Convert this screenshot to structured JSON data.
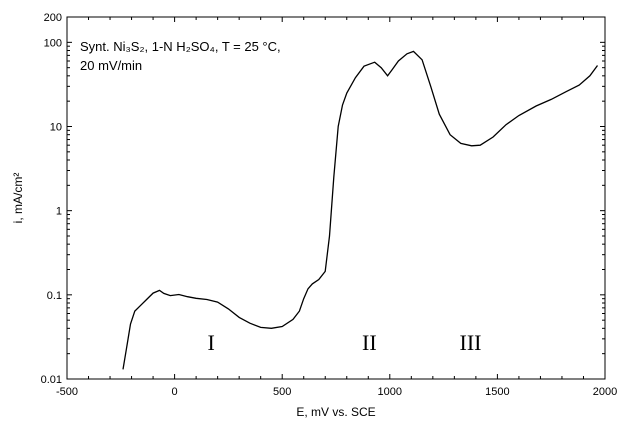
{
  "chart_data": {
    "type": "line",
    "xlabel": "E, mV vs. SCE",
    "ylabel": "i, mA/cm²",
    "xlim": [
      -500,
      2000
    ],
    "ylim": [
      0.01,
      200
    ],
    "yscale": "log",
    "grid": false,
    "x_ticks": [
      -500,
      0,
      500,
      1000,
      1500,
      2000
    ],
    "x_tick_labels": [
      "-500",
      "0",
      "500",
      "1000",
      "1500",
      "2000"
    ],
    "y_ticks": [
      0.01,
      0.1,
      1,
      10,
      100,
      200
    ],
    "y_tick_labels": [
      "0.01",
      "0.1",
      "1",
      "10",
      "100",
      "200"
    ],
    "annotation_line1": "Synt. Ni₃S₂, 1-N H₂SO₄, T = 25 °C,",
    "annotation_line2": "20 mV/min",
    "region_labels": [
      {
        "text": "I",
        "x": 170,
        "y": 0.022
      },
      {
        "text": "II",
        "x": 905,
        "y": 0.022
      },
      {
        "text": "III",
        "x": 1375,
        "y": 0.022
      }
    ],
    "series": [
      {
        "color": "#000000",
        "points": [
          [
            -240,
            0.013
          ],
          [
            -225,
            0.022
          ],
          [
            -205,
            0.045
          ],
          [
            -185,
            0.064
          ],
          [
            -160,
            0.074
          ],
          [
            -130,
            0.088
          ],
          [
            -100,
            0.105
          ],
          [
            -70,
            0.113
          ],
          [
            -50,
            0.104
          ],
          [
            -20,
            0.098
          ],
          [
            20,
            0.101
          ],
          [
            60,
            0.095
          ],
          [
            100,
            0.091
          ],
          [
            150,
            0.088
          ],
          [
            200,
            0.082
          ],
          [
            250,
            0.068
          ],
          [
            300,
            0.054
          ],
          [
            350,
            0.046
          ],
          [
            400,
            0.041
          ],
          [
            450,
            0.04
          ],
          [
            500,
            0.042
          ],
          [
            550,
            0.051
          ],
          [
            580,
            0.064
          ],
          [
            600,
            0.09
          ],
          [
            620,
            0.118
          ],
          [
            640,
            0.135
          ],
          [
            670,
            0.152
          ],
          [
            700,
            0.19
          ],
          [
            720,
            0.5
          ],
          [
            740,
            2.5
          ],
          [
            760,
            10.0
          ],
          [
            780,
            18.0
          ],
          [
            800,
            25.0
          ],
          [
            840,
            38.0
          ],
          [
            880,
            52.0
          ],
          [
            930,
            58.0
          ],
          [
            960,
            50.0
          ],
          [
            990,
            40.0
          ],
          [
            1010,
            47.0
          ],
          [
            1040,
            60.0
          ],
          [
            1080,
            73.0
          ],
          [
            1110,
            78.0
          ],
          [
            1150,
            62.0
          ],
          [
            1190,
            30.0
          ],
          [
            1230,
            14.0
          ],
          [
            1280,
            8.0
          ],
          [
            1330,
            6.3
          ],
          [
            1380,
            5.9
          ],
          [
            1420,
            6.0
          ],
          [
            1480,
            7.5
          ],
          [
            1540,
            10.5
          ],
          [
            1600,
            13.5
          ],
          [
            1680,
            17.5
          ],
          [
            1750,
            21.0
          ],
          [
            1820,
            26.0
          ],
          [
            1880,
            31.0
          ],
          [
            1930,
            40.0
          ],
          [
            1965,
            53.0
          ]
        ]
      }
    ]
  }
}
